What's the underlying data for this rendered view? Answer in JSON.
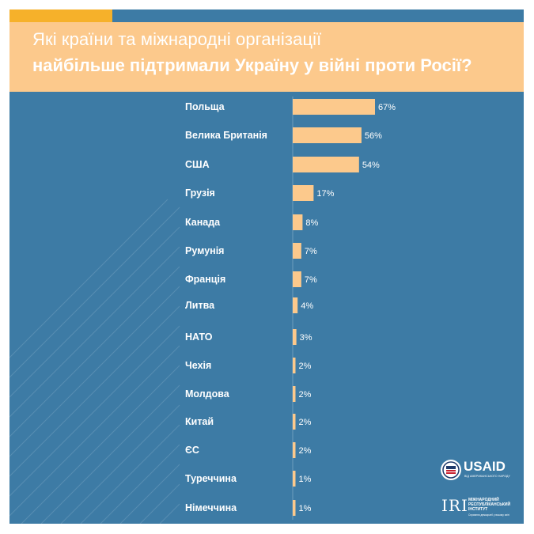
{
  "header": {
    "title_line1": "Які країни та міжнародні організації",
    "title_line2": "найбільше підтримали Україну у війні проти Росії?"
  },
  "chart_data": {
    "type": "bar",
    "orientation": "horizontal",
    "title": "Які країни та міжнародні організації найбільше підтримали Україну у війні проти Росії?",
    "categories": [
      "Польща",
      "Велика Британія",
      "США",
      "Грузія",
      "Канада",
      "Румунія",
      "Франція",
      "Литва",
      "НАТО",
      "Чехія",
      "Молдова",
      "Китай",
      "ЄС",
      "Туреччина",
      "Німеччина"
    ],
    "values": [
      67,
      56,
      54,
      17,
      8,
      7,
      7,
      4,
      3,
      2,
      2,
      2,
      2,
      1,
      1
    ],
    "value_labels": [
      "67%",
      "56%",
      "54%",
      "17%",
      "8%",
      "7%",
      "7%",
      "4%",
      "3%",
      "2%",
      "2%",
      "2%",
      "2%",
      "1%",
      "1%"
    ],
    "unit": "%",
    "xlabel": "",
    "ylabel": "",
    "xlim": [
      0,
      67
    ],
    "grid": false,
    "legend": "none"
  },
  "logos": {
    "usaid": {
      "word": "USAID",
      "subtitle": "ВІД АМЕРИКАНСЬКОГО НАРОДУ"
    },
    "iri": {
      "word": "IRI",
      "name": "МІЖНАРОДНИЙ РЕСПУБЛІКАНСЬКИЙ ІНСТИТУТ",
      "subtitle": "Сприяння демократії у всьому світі"
    }
  },
  "colors": {
    "background": "#3d7ba5",
    "header": "#fcc98c",
    "accent": "#f6b12a",
    "bar": "#fcc98c",
    "text": "#ffffff"
  }
}
